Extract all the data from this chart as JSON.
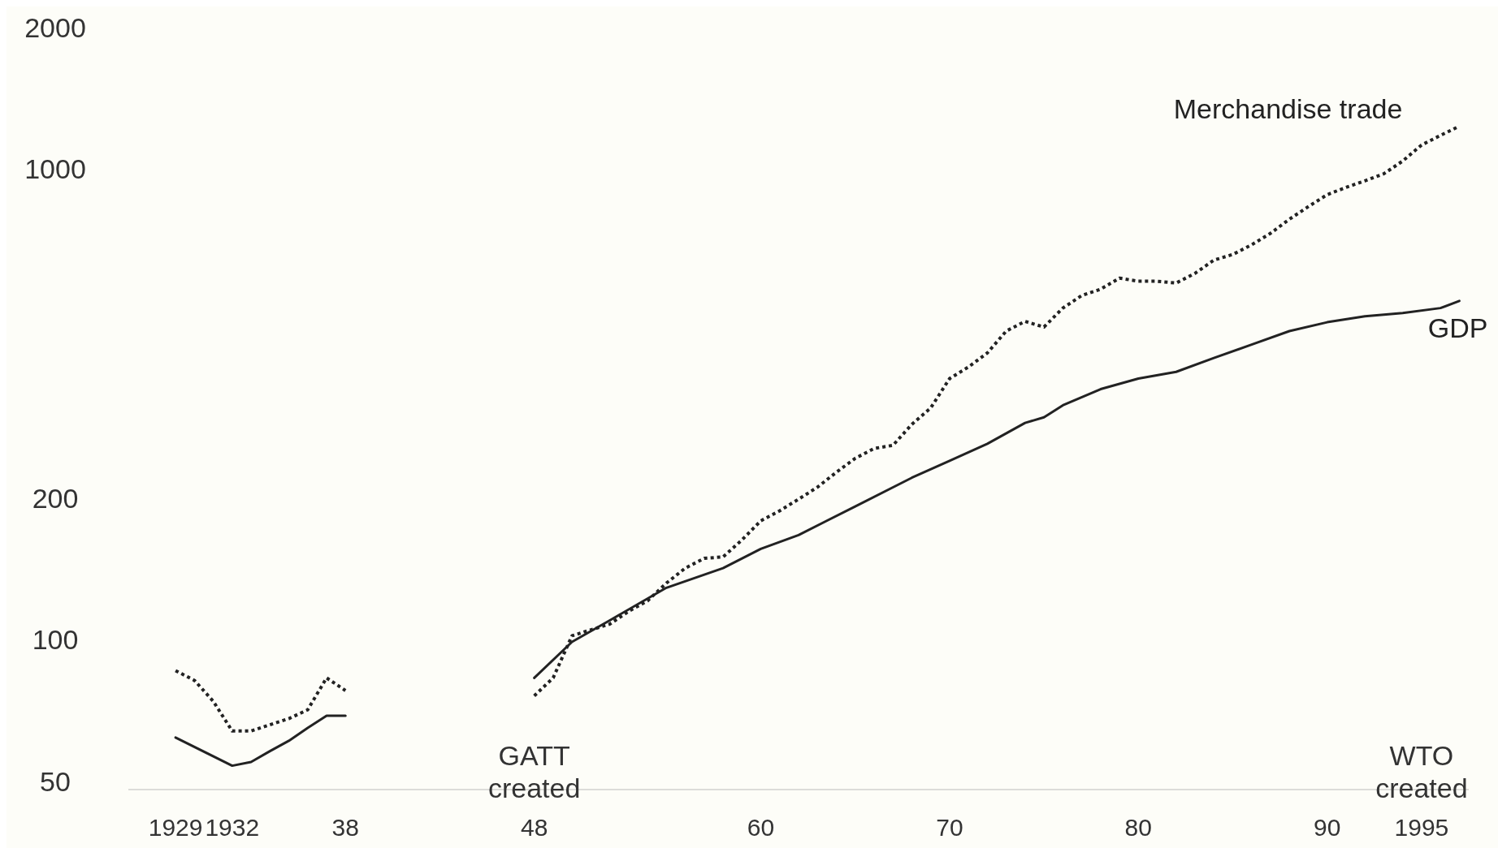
{
  "chart_data": {
    "type": "line",
    "log": "y",
    "grid": false,
    "xlim": [
      1926.5,
      1997.5
    ],
    "ylim": [
      50,
      2000
    ],
    "xticks": [
      {
        "value": 1929,
        "label": "1929"
      },
      {
        "value": 1932,
        "label": "1932"
      },
      {
        "value": 1938,
        "label": "38"
      },
      {
        "value": 1948,
        "label": "48"
      },
      {
        "value": 1960,
        "label": "60"
      },
      {
        "value": 1970,
        "label": "70"
      },
      {
        "value": 1980,
        "label": "80"
      },
      {
        "value": 1990,
        "label": "90"
      },
      {
        "value": 1995,
        "label": "1995"
      }
    ],
    "yticks": [
      50,
      100,
      200,
      1000,
      2000
    ],
    "annotations": [
      "GATT created",
      "WTO created"
    ],
    "series": [
      {
        "name": "Merchandise trade",
        "color": "#222222",
        "line_style": "dotted",
        "x": [
          1929,
          1930,
          1931,
          1932,
          1933,
          1934,
          1935,
          1936,
          1937,
          1938,
          1943,
          1948,
          1949,
          1950,
          1951,
          1952,
          1953,
          1954,
          1955,
          1956,
          1957,
          1958,
          1959,
          1960,
          1961,
          1962,
          1963,
          1964,
          1965,
          1966,
          1967,
          1968,
          1969,
          1970,
          1971,
          1972,
          1973,
          1974,
          1975,
          1976,
          1977,
          1978,
          1979,
          1980,
          1981,
          1982,
          1983,
          1984,
          1985,
          1986,
          1987,
          1988,
          1989,
          1990,
          1991,
          1992,
          1993,
          1994,
          1995,
          1996,
          1997
        ],
        "values": [
          86,
          82,
          74,
          64,
          64,
          66,
          68,
          71,
          83,
          78,
          null,
          76,
          83,
          102,
          105,
          108,
          115,
          121,
          132,
          142,
          149,
          150,
          163,
          179,
          188,
          199,
          211,
          227,
          243,
          255,
          259,
          287,
          311,
          359,
          380,
          407,
          453,
          475,
          462,
          507,
          539,
          556,
          587,
          578,
          578,
          573,
          601,
          641,
          659,
          691,
          731,
          783,
          833,
          883,
          915,
          945,
          978,
          1041,
          1126,
          1180,
          1234
        ]
      },
      {
        "name": "GDP",
        "color": "#222222",
        "line_style": "solid",
        "x": [
          1929,
          1932,
          1933,
          1934,
          1935,
          1936,
          1937,
          1938,
          1943,
          1948,
          1950,
          1952,
          1955,
          1958,
          1960,
          1962,
          1965,
          1968,
          1970,
          1972,
          1974,
          1975,
          1976,
          1978,
          1980,
          1982,
          1984,
          1986,
          1988,
          1990,
          1992,
          1994,
          1996,
          1997
        ],
        "values": [
          62,
          54,
          55,
          58,
          61,
          65,
          69,
          69,
          null,
          83,
          99,
          110,
          129,
          142,
          156,
          167,
          192,
          221,
          240,
          261,
          289,
          297,
          315,
          341,
          359,
          371,
          397,
          424,
          453,
          473,
          487,
          495,
          507,
          525
        ]
      }
    ]
  }
}
